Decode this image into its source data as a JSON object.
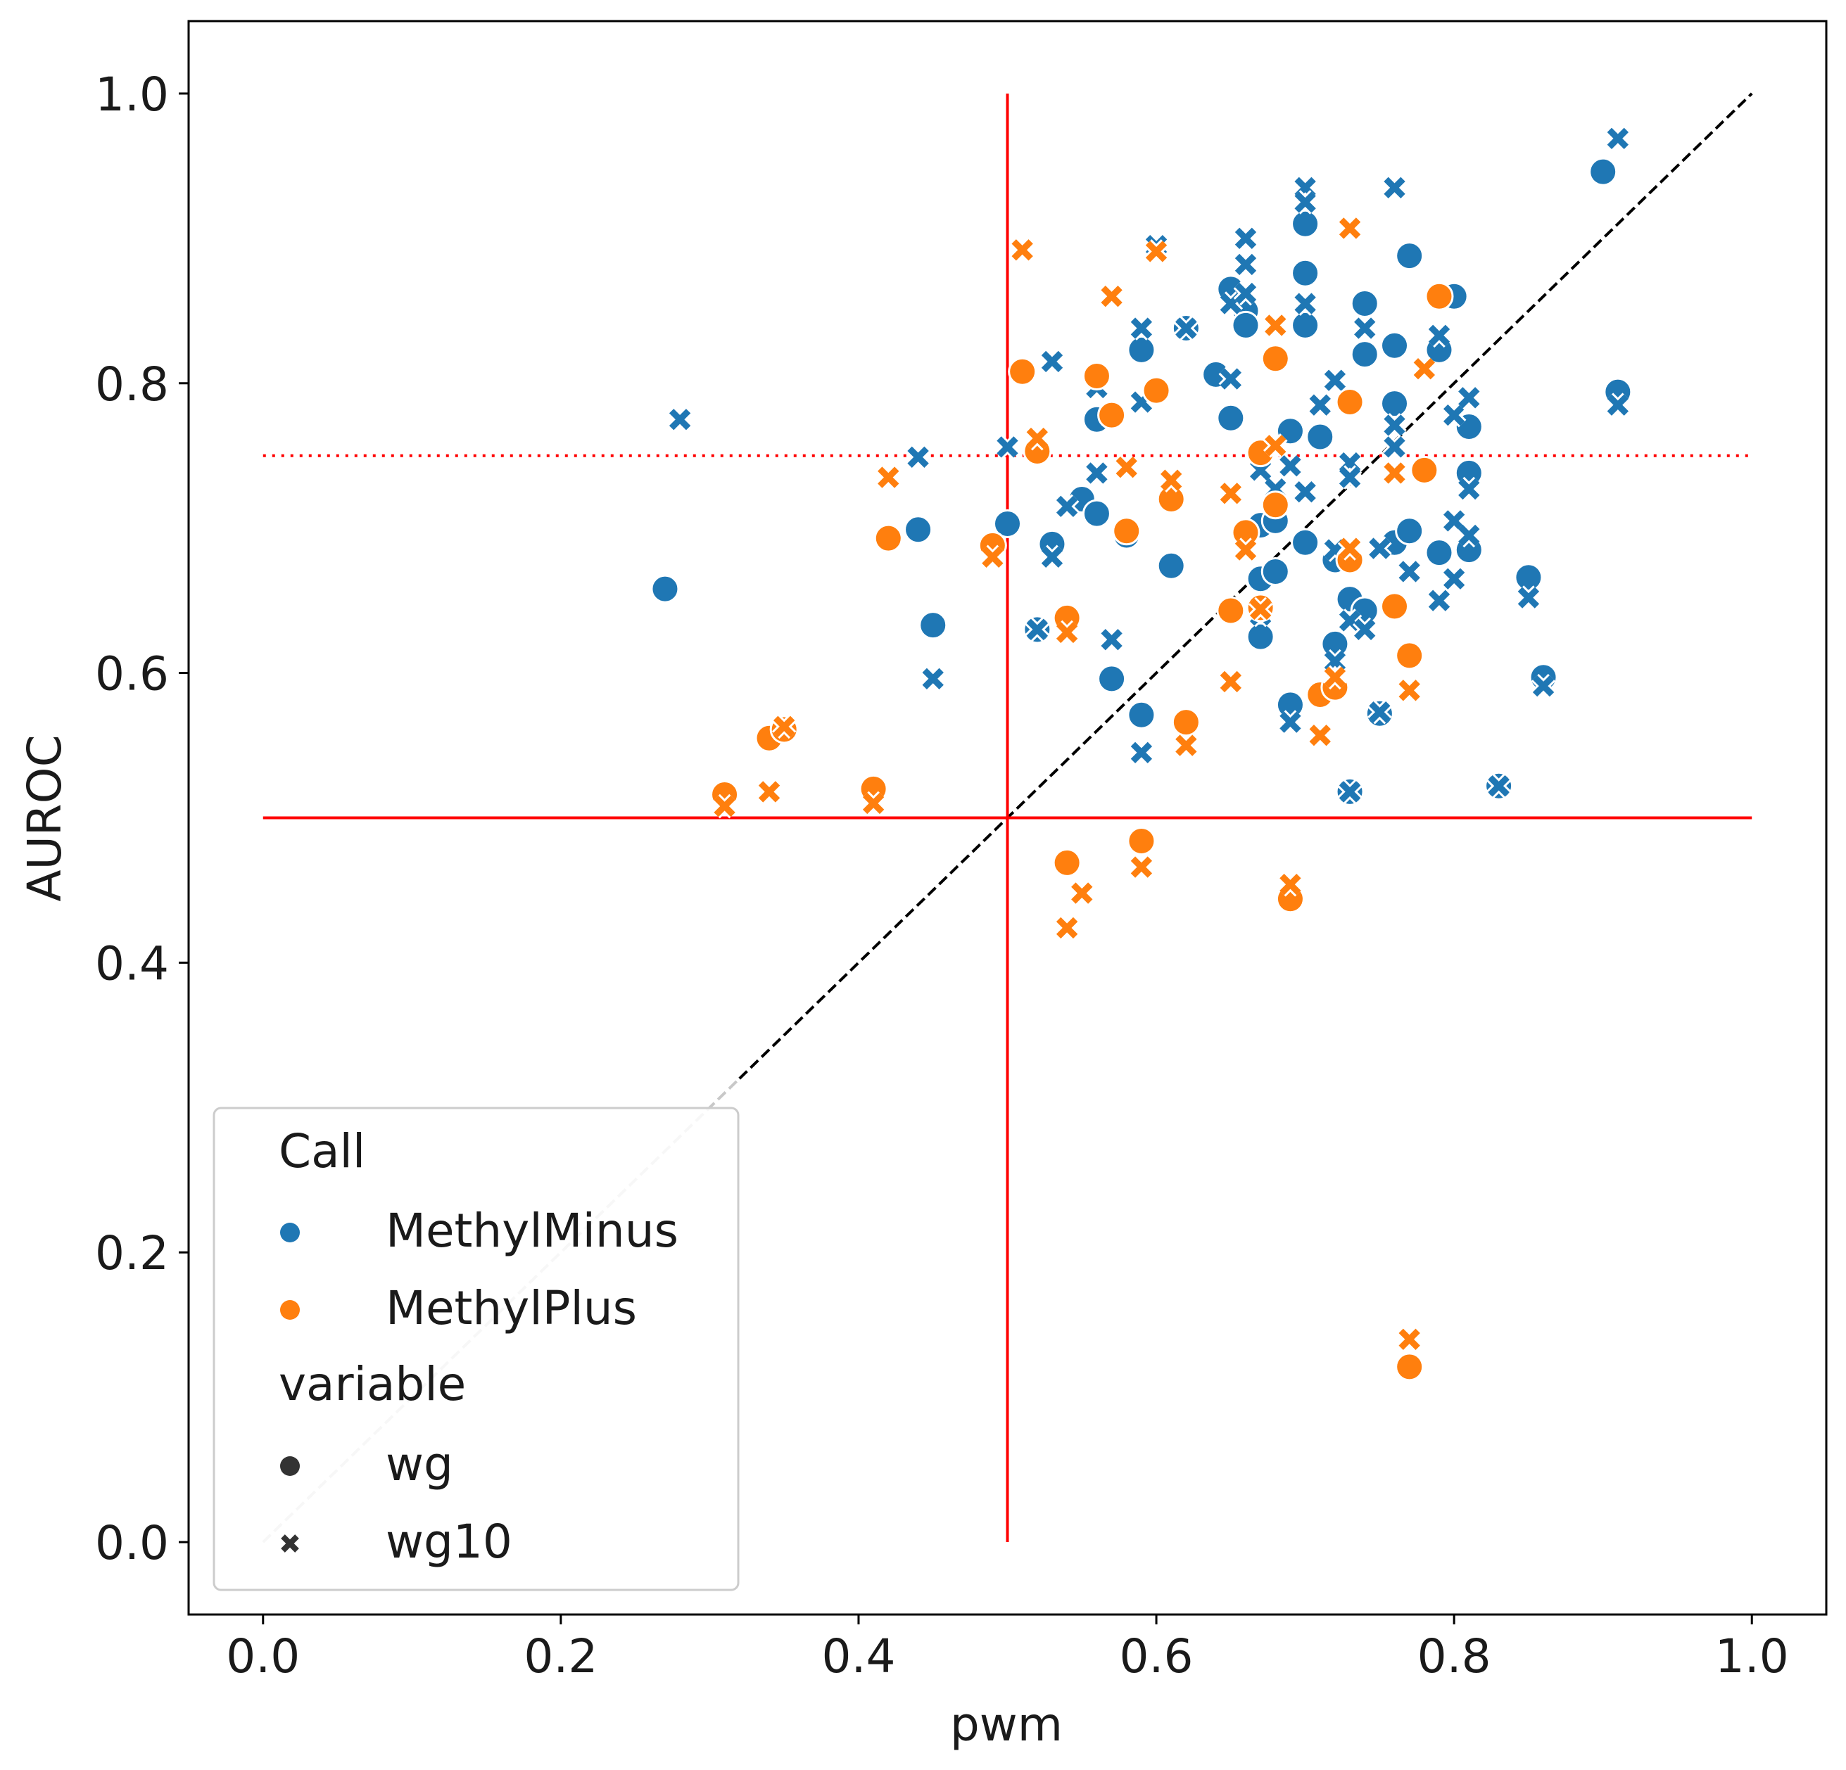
{
  "chart_data": {
    "type": "scatter",
    "title": "",
    "xlabel": "pwm",
    "ylabel": "AUROC",
    "xlim": [
      -0.05,
      1.05
    ],
    "ylim": [
      -0.05,
      1.05
    ],
    "xticks": [
      "0.0",
      "0.2",
      "0.4",
      "0.6",
      "0.8",
      "1.0"
    ],
    "yticks": [
      "0.0",
      "0.2",
      "0.4",
      "0.6",
      "0.8",
      "1.0"
    ],
    "grid": false,
    "legend": {
      "placement": "lower-left",
      "hue_title": "Call",
      "hue_entries": [
        "MethylMinus",
        "MethylPlus"
      ],
      "style_title": "variable",
      "style_entries": [
        "wg",
        "wg10"
      ]
    },
    "colors": {
      "MethylMinus": "#1f77b4",
      "MethylPlus": "#ff7f0e",
      "reference": "#ff0000"
    },
    "reference_lines": {
      "diagonal": {
        "from": [
          0,
          0
        ],
        "to": [
          1,
          1
        ],
        "style": "dashed"
      },
      "vertical": {
        "x": 0.5,
        "y_range": [
          0,
          1
        ],
        "style": "solid"
      },
      "horizontal": {
        "y": 0.5,
        "x_range": [
          0,
          1
        ],
        "style": "solid"
      },
      "threshold": {
        "y": 0.75,
        "x_range": [
          0,
          1
        ],
        "style": "dotted"
      }
    },
    "series": [
      {
        "name": "MethylMinus",
        "marker": "wg",
        "points": [
          [
            0.27,
            0.658
          ],
          [
            0.44,
            0.699
          ],
          [
            0.45,
            0.633
          ],
          [
            0.5,
            0.703
          ],
          [
            0.52,
            0.63
          ],
          [
            0.53,
            0.689
          ],
          [
            0.55,
            0.72
          ],
          [
            0.56,
            0.775
          ],
          [
            0.56,
            0.71
          ],
          [
            0.57,
            0.596
          ],
          [
            0.58,
            0.695
          ],
          [
            0.59,
            0.823
          ],
          [
            0.59,
            0.571
          ],
          [
            0.61,
            0.674
          ],
          [
            0.62,
            0.838
          ],
          [
            0.64,
            0.806
          ],
          [
            0.65,
            0.865
          ],
          [
            0.65,
            0.776
          ],
          [
            0.66,
            0.85
          ],
          [
            0.66,
            0.84
          ],
          [
            0.67,
            0.702
          ],
          [
            0.67,
            0.665
          ],
          [
            0.67,
            0.625
          ],
          [
            0.68,
            0.705
          ],
          [
            0.68,
            0.67
          ],
          [
            0.69,
            0.767
          ],
          [
            0.69,
            0.578
          ],
          [
            0.7,
            0.91
          ],
          [
            0.7,
            0.876
          ],
          [
            0.7,
            0.84
          ],
          [
            0.7,
            0.69
          ],
          [
            0.71,
            0.763
          ],
          [
            0.72,
            0.678
          ],
          [
            0.72,
            0.62
          ],
          [
            0.73,
            0.651
          ],
          [
            0.73,
            0.518
          ],
          [
            0.74,
            0.855
          ],
          [
            0.74,
            0.82
          ],
          [
            0.74,
            0.643
          ],
          [
            0.75,
            0.572
          ],
          [
            0.76,
            0.826
          ],
          [
            0.76,
            0.786
          ],
          [
            0.76,
            0.69
          ],
          [
            0.77,
            0.888
          ],
          [
            0.77,
            0.698
          ],
          [
            0.79,
            0.683
          ],
          [
            0.79,
            0.823
          ],
          [
            0.8,
            0.86
          ],
          [
            0.81,
            0.77
          ],
          [
            0.81,
            0.738
          ],
          [
            0.81,
            0.685
          ],
          [
            0.83,
            0.522
          ],
          [
            0.85,
            0.666
          ],
          [
            0.86,
            0.597
          ],
          [
            0.9,
            0.946
          ],
          [
            0.91,
            0.794
          ]
        ]
      },
      {
        "name": "MethylMinus",
        "marker": "wg10",
        "points": [
          [
            0.28,
            0.775
          ],
          [
            0.44,
            0.749
          ],
          [
            0.45,
            0.596
          ],
          [
            0.5,
            0.756
          ],
          [
            0.52,
            0.63
          ],
          [
            0.53,
            0.815
          ],
          [
            0.53,
            0.68
          ],
          [
            0.54,
            0.715
          ],
          [
            0.56,
            0.738
          ],
          [
            0.56,
            0.797
          ],
          [
            0.57,
            0.623
          ],
          [
            0.59,
            0.838
          ],
          [
            0.59,
            0.787
          ],
          [
            0.59,
            0.545
          ],
          [
            0.6,
            0.895
          ],
          [
            0.62,
            0.838
          ],
          [
            0.65,
            0.803
          ],
          [
            0.65,
            0.855
          ],
          [
            0.66,
            0.9
          ],
          [
            0.66,
            0.882
          ],
          [
            0.66,
            0.862
          ],
          [
            0.67,
            0.74
          ],
          [
            0.67,
            0.64
          ],
          [
            0.68,
            0.727
          ],
          [
            0.69,
            0.566
          ],
          [
            0.69,
            0.743
          ],
          [
            0.7,
            0.935
          ],
          [
            0.7,
            0.925
          ],
          [
            0.7,
            0.855
          ],
          [
            0.7,
            0.725
          ],
          [
            0.71,
            0.785
          ],
          [
            0.72,
            0.802
          ],
          [
            0.72,
            0.685
          ],
          [
            0.72,
            0.608
          ],
          [
            0.73,
            0.518
          ],
          [
            0.73,
            0.745
          ],
          [
            0.73,
            0.735
          ],
          [
            0.73,
            0.636
          ],
          [
            0.74,
            0.838
          ],
          [
            0.74,
            0.63
          ],
          [
            0.75,
            0.573
          ],
          [
            0.75,
            0.686
          ],
          [
            0.76,
            0.935
          ],
          [
            0.76,
            0.771
          ],
          [
            0.76,
            0.756
          ],
          [
            0.77,
            0.67
          ],
          [
            0.79,
            0.833
          ],
          [
            0.79,
            0.65
          ],
          [
            0.8,
            0.705
          ],
          [
            0.8,
            0.665
          ],
          [
            0.8,
            0.778
          ],
          [
            0.81,
            0.695
          ],
          [
            0.81,
            0.79
          ],
          [
            0.81,
            0.727
          ],
          [
            0.83,
            0.522
          ],
          [
            0.85,
            0.652
          ],
          [
            0.86,
            0.591
          ],
          [
            0.91,
            0.969
          ],
          [
            0.91,
            0.785
          ]
        ]
      },
      {
        "name": "MethylPlus",
        "marker": "wg",
        "points": [
          [
            0.31,
            0.516
          ],
          [
            0.34,
            0.555
          ],
          [
            0.35,
            0.561
          ],
          [
            0.41,
            0.52
          ],
          [
            0.42,
            0.693
          ],
          [
            0.49,
            0.688
          ],
          [
            0.51,
            0.808
          ],
          [
            0.52,
            0.753
          ],
          [
            0.54,
            0.638
          ],
          [
            0.54,
            0.469
          ],
          [
            0.56,
            0.805
          ],
          [
            0.57,
            0.778
          ],
          [
            0.58,
            0.698
          ],
          [
            0.59,
            0.484
          ],
          [
            0.6,
            0.795
          ],
          [
            0.61,
            0.72
          ],
          [
            0.62,
            0.566
          ],
          [
            0.65,
            0.643
          ],
          [
            0.66,
            0.697
          ],
          [
            0.67,
            0.752
          ],
          [
            0.67,
            0.645
          ],
          [
            0.68,
            0.817
          ],
          [
            0.68,
            0.716
          ],
          [
            0.69,
            0.444
          ],
          [
            0.71,
            0.585
          ],
          [
            0.72,
            0.59
          ],
          [
            0.73,
            0.678
          ],
          [
            0.73,
            0.787
          ],
          [
            0.76,
            0.646
          ],
          [
            0.77,
            0.612
          ],
          [
            0.77,
            0.121
          ],
          [
            0.78,
            0.74
          ],
          [
            0.79,
            0.86
          ]
        ]
      },
      {
        "name": "MethylPlus",
        "marker": "wg10",
        "points": [
          [
            0.31,
            0.508
          ],
          [
            0.34,
            0.518
          ],
          [
            0.35,
            0.563
          ],
          [
            0.41,
            0.51
          ],
          [
            0.42,
            0.735
          ],
          [
            0.49,
            0.68
          ],
          [
            0.51,
            0.892
          ],
          [
            0.52,
            0.762
          ],
          [
            0.54,
            0.628
          ],
          [
            0.54,
            0.424
          ],
          [
            0.55,
            0.448
          ],
          [
            0.57,
            0.86
          ],
          [
            0.58,
            0.742
          ],
          [
            0.59,
            0.466
          ],
          [
            0.6,
            0.891
          ],
          [
            0.61,
            0.733
          ],
          [
            0.62,
            0.55
          ],
          [
            0.65,
            0.594
          ],
          [
            0.65,
            0.724
          ],
          [
            0.66,
            0.685
          ],
          [
            0.67,
            0.644
          ],
          [
            0.68,
            0.84
          ],
          [
            0.68,
            0.757
          ],
          [
            0.69,
            0.454
          ],
          [
            0.71,
            0.557
          ],
          [
            0.72,
            0.597
          ],
          [
            0.73,
            0.686
          ],
          [
            0.73,
            0.907
          ],
          [
            0.76,
            0.738
          ],
          [
            0.77,
            0.588
          ],
          [
            0.77,
            0.14
          ],
          [
            0.78,
            0.81
          ]
        ]
      }
    ]
  }
}
